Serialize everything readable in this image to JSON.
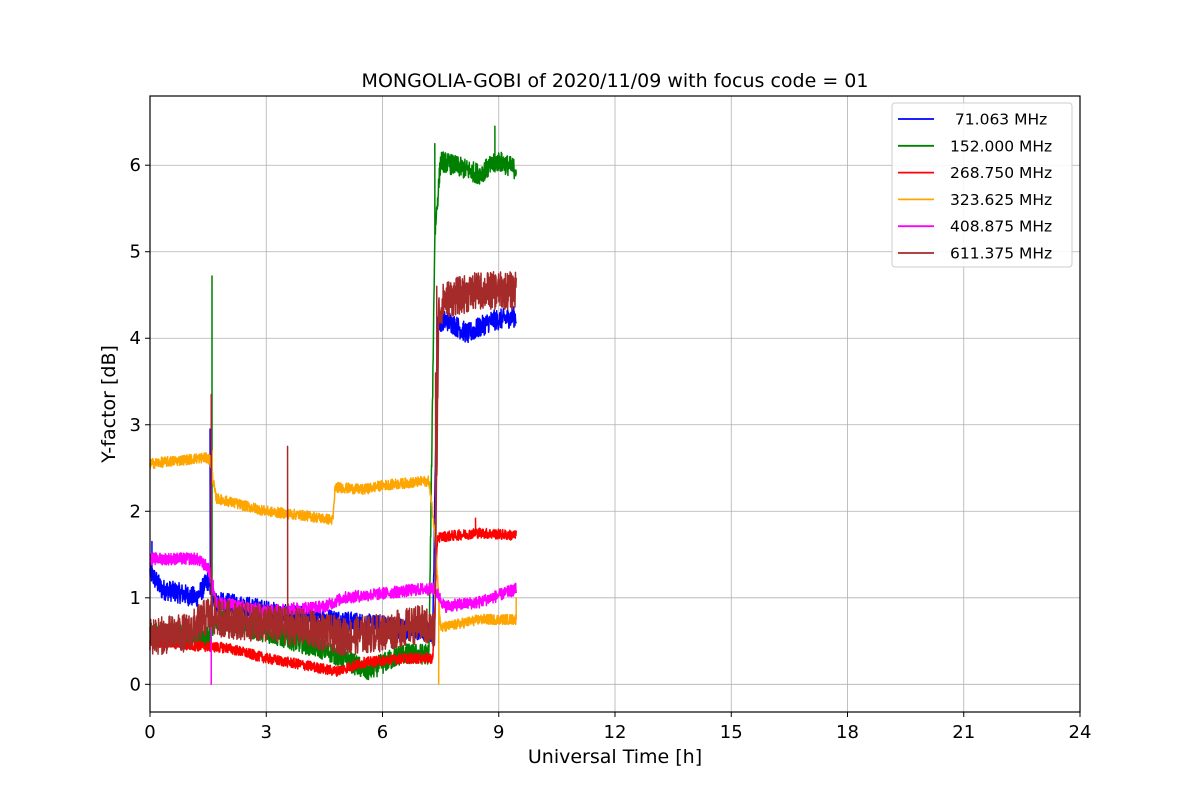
{
  "chart_data": {
    "type": "line",
    "title": "MONGOLIA-GOBI of 2020/11/09 with focus code = 01",
    "xlabel": "Universal Time [h]",
    "ylabel": "Y-factor [dB]",
    "xlim": [
      0,
      24
    ],
    "ylim": [
      -0.32,
      6.8
    ],
    "xticks": [
      0,
      3,
      6,
      9,
      12,
      15,
      18,
      21,
      24
    ],
    "yticks": [
      0,
      1,
      2,
      3,
      4,
      5,
      6
    ],
    "grid": true,
    "legend_position": "top-right",
    "series": [
      {
        "name": " 71.063 MHz",
        "color": "#0000ff",
        "noise": 0.12,
        "points": [
          [
            0,
            1.3
          ],
          [
            0.3,
            1.1
          ],
          [
            0.8,
            1.05
          ],
          [
            1.2,
            1.0
          ],
          [
            1.5,
            1.2
          ],
          [
            1.7,
            0.95
          ],
          [
            2.5,
            0.9
          ],
          [
            3.5,
            0.8
          ],
          [
            4.7,
            0.75
          ],
          [
            5.5,
            0.7
          ],
          [
            6.5,
            0.65
          ],
          [
            7.3,
            0.6
          ],
          [
            7.42,
            4.2
          ],
          [
            7.7,
            4.2
          ],
          [
            8.2,
            4.05
          ],
          [
            8.8,
            4.2
          ],
          [
            9.45,
            4.25
          ]
        ],
        "spikes": [
          [
            0.05,
            1.65
          ],
          [
            1.55,
            2.95
          ]
        ]
      },
      {
        "name": "152.000 MHz",
        "color": "#008000",
        "noise": 0.12,
        "points": [
          [
            0,
            0.6
          ],
          [
            1.5,
            0.55
          ],
          [
            1.7,
            0.75
          ],
          [
            3.0,
            0.6
          ],
          [
            4.5,
            0.4
          ],
          [
            5.0,
            0.3
          ],
          [
            5.6,
            0.15
          ],
          [
            6.5,
            0.35
          ],
          [
            7.2,
            0.35
          ],
          [
            7.35,
            5.2
          ],
          [
            7.5,
            6.05
          ],
          [
            8.5,
            5.9
          ],
          [
            9.0,
            6.05
          ],
          [
            9.45,
            5.95
          ]
        ],
        "spikes": [
          [
            1.6,
            4.72
          ],
          [
            7.35,
            6.25
          ],
          [
            8.9,
            6.45
          ]
        ]
      },
      {
        "name": "268.750 MHz",
        "color": "#ff0000",
        "noise": 0.06,
        "points": [
          [
            0,
            0.5
          ],
          [
            1.0,
            0.45
          ],
          [
            2.0,
            0.42
          ],
          [
            3.0,
            0.3
          ],
          [
            4.0,
            0.22
          ],
          [
            4.8,
            0.15
          ],
          [
            5.5,
            0.25
          ],
          [
            6.5,
            0.3
          ],
          [
            7.3,
            0.3
          ],
          [
            7.42,
            1.7
          ],
          [
            8.5,
            1.75
          ],
          [
            9.45,
            1.72
          ]
        ],
        "spikes": [
          [
            8.4,
            1.92
          ]
        ]
      },
      {
        "name": "323.625 MHz",
        "color": "#ffa500",
        "noise": 0.06,
        "points": [
          [
            0,
            2.55
          ],
          [
            1.4,
            2.62
          ],
          [
            1.55,
            2.6
          ],
          [
            1.7,
            2.15
          ],
          [
            3.0,
            2.0
          ],
          [
            4.0,
            1.95
          ],
          [
            4.72,
            1.9
          ],
          [
            4.78,
            2.28
          ],
          [
            5.5,
            2.25
          ],
          [
            6.0,
            2.3
          ],
          [
            7.2,
            2.35
          ],
          [
            7.35,
            1.75
          ],
          [
            7.5,
            0.65
          ],
          [
            8.5,
            0.75
          ],
          [
            9.45,
            0.75
          ]
        ],
        "spikes": [
          [
            1.6,
            2.7
          ],
          [
            7.45,
            0.0
          ],
          [
            9.45,
            1.0
          ]
        ]
      },
      {
        "name": "408.875 MHz",
        "color": "#ff00ff",
        "noise": 0.07,
        "points": [
          [
            0,
            1.45
          ],
          [
            1.2,
            1.45
          ],
          [
            1.5,
            1.35
          ],
          [
            1.7,
            0.95
          ],
          [
            3.0,
            0.85
          ],
          [
            4.5,
            0.9
          ],
          [
            5.0,
            1.0
          ],
          [
            6.0,
            1.05
          ],
          [
            7.0,
            1.1
          ],
          [
            7.35,
            1.1
          ],
          [
            7.6,
            0.9
          ],
          [
            8.5,
            0.95
          ],
          [
            9.45,
            1.1
          ]
        ],
        "spikes": [
          [
            1.58,
            0.0
          ],
          [
            1.63,
            1.2
          ]
        ]
      },
      {
        "name": "611.375 MHz",
        "color": "#a52a2a",
        "noise": 0.22,
        "points": [
          [
            0,
            0.55
          ],
          [
            1.0,
            0.6
          ],
          [
            1.5,
            0.8
          ],
          [
            2.0,
            0.75
          ],
          [
            3.0,
            0.7
          ],
          [
            4.0,
            0.65
          ],
          [
            5.0,
            0.55
          ],
          [
            6.0,
            0.6
          ],
          [
            7.0,
            0.7
          ],
          [
            7.35,
            0.6
          ],
          [
            7.45,
            4.3
          ],
          [
            7.6,
            4.45
          ],
          [
            8.5,
            4.55
          ],
          [
            9.45,
            4.55
          ]
        ],
        "spikes": [
          [
            1.58,
            3.35
          ],
          [
            3.55,
            2.75
          ],
          [
            7.37,
            3.6
          ],
          [
            7.4,
            4.6
          ],
          [
            8.8,
            4.75
          ]
        ]
      }
    ]
  }
}
